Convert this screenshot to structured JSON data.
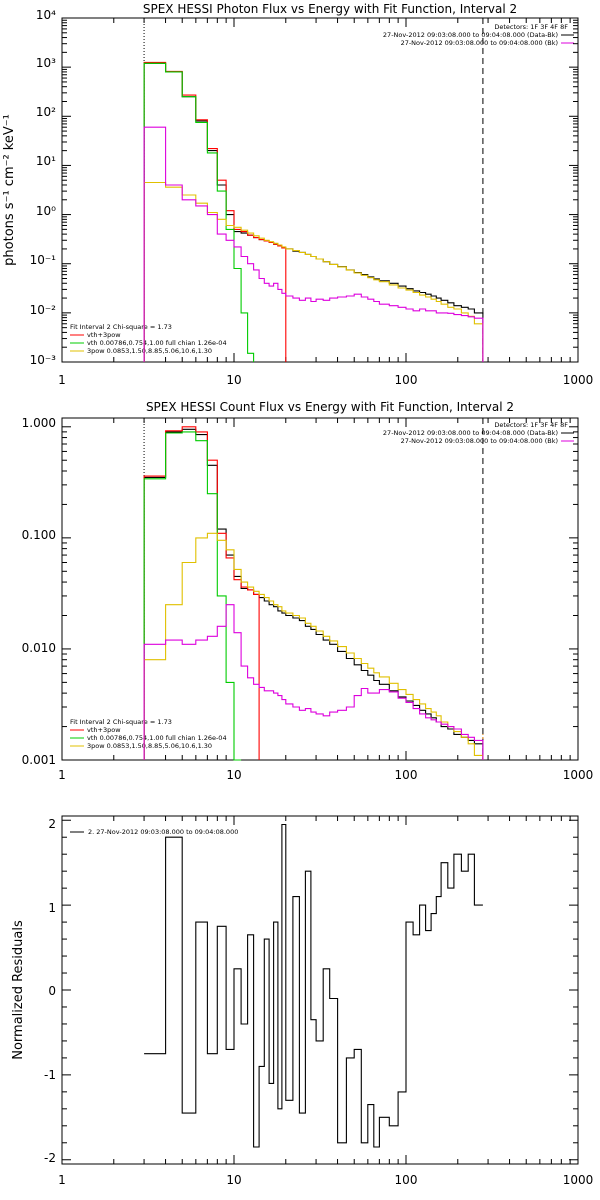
{
  "chart_data": [
    {
      "type": "line",
      "title": "SPEX HESSI Photon Flux vs Energy with Fit Function, Interval 2",
      "xlabel": "",
      "ylabel": "photons s⁻¹ cm⁻² keV⁻¹",
      "xscale": "log",
      "yscale": "log",
      "xlim": [
        1,
        1000
      ],
      "ylim": [
        0.001,
        10000
      ],
      "x_ticks": [
        "1",
        "10",
        "100",
        "1000"
      ],
      "y_ticks": [
        "10⁻³",
        "10⁻²",
        "10⁻¹",
        "10⁰",
        "10¹",
        "10²",
        "10³",
        "10⁴"
      ],
      "vlines": [
        {
          "x": 3,
          "style": "dotted"
        },
        {
          "x": 280,
          "style": "dashed"
        }
      ],
      "legend_header": [
        "Detectors: 1F 3F 4F 8F",
        "27-Nov-2012 09:03:08.000 to 09:04:08.000 (Data-Bk)",
        "27-Nov-2012 09:03:08.000 to 09:04:08.000 (Bk)"
      ],
      "fit_info": [
        "Fit Interval 2   Chi-square = 1.73",
        "vth+3pow",
        "vth 0.00786,0.754,1.00   full chian 1.26e-04",
        "3pow 0.0853,1.50,8.85,5.06,10.6,1.30"
      ],
      "series": [
        {
          "color": "#000000",
          "edges": [
            3,
            4,
            5,
            6,
            7,
            8,
            9,
            10,
            11,
            12,
            13,
            14,
            15,
            16,
            17,
            18,
            19,
            20,
            22,
            24,
            26,
            28,
            30,
            33,
            36,
            40,
            45,
            50,
            55,
            60,
            65,
            70,
            80,
            90,
            100,
            110,
            120,
            130,
            140,
            150,
            160,
            175,
            190,
            210,
            230,
            250,
            280
          ],
          "values": [
            1200,
            800,
            250,
            80,
            20,
            4,
            1.0,
            0.45,
            0.42,
            0.38,
            0.34,
            0.31,
            0.29,
            0.27,
            0.25,
            0.23,
            0.21,
            0.2,
            0.18,
            0.17,
            0.155,
            0.14,
            0.125,
            0.11,
            0.097,
            0.087,
            0.075,
            0.066,
            0.06,
            0.054,
            0.049,
            0.045,
            0.04,
            0.035,
            0.031,
            0.028,
            0.026,
            0.024,
            0.022,
            0.02,
            0.018,
            0.016,
            0.014,
            0.013,
            0.012,
            0.01
          ]
        },
        {
          "color": "#ff0000",
          "edges": [
            3,
            4,
            5,
            6,
            7,
            8,
            9,
            10,
            11,
            12,
            13,
            14,
            15,
            16,
            17,
            18,
            19,
            20
          ],
          "values": [
            1250,
            820,
            270,
            85,
            22,
            5,
            1.2,
            0.5,
            0.45,
            0.38,
            0.34,
            0.31,
            0.29,
            0.27,
            0.25,
            0.23,
            0.21
          ]
        },
        {
          "color": "#00cc00",
          "edges": [
            3,
            4,
            5,
            6,
            7,
            8,
            9,
            10,
            11,
            12,
            13
          ],
          "values": [
            1200,
            800,
            250,
            75,
            18,
            3,
            0.5,
            0.08,
            0.01,
            0.0015
          ]
        },
        {
          "color": "#e0c000",
          "edges": [
            3,
            4,
            5,
            6,
            7,
            8,
            9,
            10,
            11,
            12,
            13,
            14,
            15,
            16,
            17,
            18,
            19,
            20,
            22,
            24,
            26,
            28,
            30,
            33,
            36,
            40,
            45,
            50,
            55,
            60,
            65,
            70,
            80,
            90,
            100,
            110,
            120,
            130,
            140,
            150,
            160,
            175,
            190,
            210,
            230,
            250,
            280
          ],
          "values": [
            4.5,
            3.6,
            2.5,
            1.7,
            1.1,
            0.8,
            0.6,
            0.55,
            0.48,
            0.42,
            0.37,
            0.33,
            0.3,
            0.28,
            0.26,
            0.24,
            0.22,
            0.2,
            0.185,
            0.17,
            0.155,
            0.14,
            0.125,
            0.11,
            0.097,
            0.086,
            0.074,
            0.065,
            0.058,
            0.052,
            0.047,
            0.043,
            0.037,
            0.032,
            0.029,
            0.026,
            0.023,
            0.021,
            0.019,
            0.017,
            0.015,
            0.013,
            0.012,
            0.01,
            0.0085,
            0.006
          ]
        },
        {
          "color": "#dd00dd",
          "edges": [
            3,
            4,
            5,
            6,
            7,
            8,
            9,
            10,
            11,
            12,
            13,
            14,
            15,
            16,
            17,
            18,
            19,
            20,
            22,
            24,
            26,
            28,
            30,
            33,
            36,
            40,
            45,
            50,
            55,
            60,
            65,
            70,
            80,
            90,
            100,
            110,
            120,
            130,
            140,
            150,
            160,
            175,
            190,
            210,
            230,
            250,
            280
          ],
          "values": [
            60,
            4,
            2,
            1.5,
            1.0,
            0.4,
            0.3,
            0.22,
            0.14,
            0.1,
            0.075,
            0.05,
            0.04,
            0.035,
            0.04,
            0.03,
            0.025,
            0.022,
            0.02,
            0.018,
            0.02,
            0.017,
            0.019,
            0.018,
            0.02,
            0.021,
            0.022,
            0.024,
            0.021,
            0.019,
            0.017,
            0.015,
            0.014,
            0.013,
            0.012,
            0.011,
            0.012,
            0.011,
            0.011,
            0.01,
            0.01,
            0.0098,
            0.0092,
            0.0088,
            0.0083,
            0.0078
          ]
        }
      ]
    },
    {
      "type": "line",
      "title": "SPEX HESSI Count Flux vs Energy with Fit Function, Interval 2",
      "xlabel": "",
      "ylabel": "",
      "xscale": "log",
      "yscale": "log",
      "xlim": [
        1,
        1000
      ],
      "ylim": [
        0.001,
        1.2
      ],
      "x_ticks": [
        "1",
        "10",
        "100",
        "1000"
      ],
      "y_ticks": [
        "0.001",
        "0.010",
        "0.100",
        "1.000"
      ],
      "vlines": [
        {
          "x": 3,
          "style": "dotted"
        },
        {
          "x": 280,
          "style": "dashed"
        }
      ],
      "legend_header": [
        "Detectors: 1F 3F 4F 8F",
        "27-Nov-2012 09:03:08.000 to 09:04:08.000 (Data-Bk)",
        "27-Nov-2012 09:03:08.000 to 09:04:08.000 (Bk)"
      ],
      "fit_info": [
        "Fit Interval 2   Chi-square = 1.73",
        "vth+3pow",
        "vth 0.00786,0.754,1.00   full chian 1.26e-04",
        "3pow 0.0853,1.50,8.85,5.06,10.6,1.30"
      ],
      "series": [
        {
          "color": "#000000",
          "edges": [
            3,
            4,
            5,
            6,
            7,
            8,
            9,
            10,
            11,
            12,
            13,
            14,
            15,
            16,
            17,
            18,
            19,
            20,
            22,
            24,
            26,
            28,
            30,
            33,
            36,
            40,
            45,
            50,
            55,
            60,
            65,
            70,
            80,
            90,
            100,
            110,
            120,
            130,
            140,
            150,
            160,
            175,
            190,
            210,
            230,
            250,
            280
          ],
          "values": [
            0.35,
            0.9,
            0.95,
            0.85,
            0.45,
            0.12,
            0.07,
            0.045,
            0.035,
            0.034,
            0.031,
            0.029,
            0.027,
            0.025,
            0.024,
            0.022,
            0.021,
            0.02,
            0.019,
            0.018,
            0.016,
            0.015,
            0.0135,
            0.012,
            0.011,
            0.0095,
            0.0082,
            0.0072,
            0.0064,
            0.0058,
            0.0052,
            0.0048,
            0.0042,
            0.0037,
            0.0034,
            0.0031,
            0.0028,
            0.0026,
            0.0024,
            0.0022,
            0.002,
            0.0019,
            0.0017,
            0.0016,
            0.0015,
            0.0014
          ]
        },
        {
          "color": "#ff0000",
          "edges": [
            3,
            4,
            5,
            6,
            7,
            8,
            9,
            10,
            11,
            12,
            13,
            14
          ],
          "values": [
            0.36,
            0.92,
            1.0,
            0.9,
            0.5,
            0.11,
            0.066,
            0.042,
            0.036,
            0.034,
            0.031
          ]
        },
        {
          "color": "#00cc00",
          "edges": [
            3,
            4,
            5,
            6,
            7,
            8,
            9,
            10,
            11
          ],
          "values": [
            0.34,
            0.88,
            0.9,
            0.75,
            0.25,
            0.03,
            0.005,
            0.0008
          ]
        },
        {
          "color": "#e0c000",
          "edges": [
            3,
            4,
            5,
            6,
            7,
            8,
            9,
            10,
            11,
            12,
            13,
            14,
            15,
            16,
            17,
            18,
            19,
            20,
            22,
            24,
            26,
            28,
            30,
            33,
            36,
            40,
            45,
            50,
            55,
            60,
            65,
            70,
            80,
            90,
            100,
            110,
            120,
            130,
            140,
            150,
            160,
            175,
            190,
            210,
            230,
            250,
            280
          ],
          "values": [
            0.008,
            0.025,
            0.06,
            0.1,
            0.11,
            0.095,
            0.078,
            0.052,
            0.04,
            0.036,
            0.033,
            0.031,
            0.029,
            0.027,
            0.025,
            0.024,
            0.022,
            0.021,
            0.02,
            0.019,
            0.017,
            0.016,
            0.0145,
            0.013,
            0.0118,
            0.0105,
            0.0092,
            0.0082,
            0.0074,
            0.0067,
            0.0061,
            0.0056,
            0.0049,
            0.0043,
            0.0039,
            0.0035,
            0.0032,
            0.0029,
            0.0027,
            0.0025,
            0.0022,
            0.002,
            0.0018,
            0.0016,
            0.0014,
            0.0011
          ]
        },
        {
          "color": "#dd00dd",
          "edges": [
            3,
            4,
            5,
            6,
            7,
            8,
            9,
            10,
            11,
            12,
            13,
            14,
            15,
            16,
            17,
            18,
            19,
            20,
            22,
            24,
            26,
            28,
            30,
            33,
            36,
            40,
            45,
            50,
            55,
            60,
            65,
            70,
            80,
            90,
            100,
            110,
            120,
            130,
            140,
            150,
            160,
            175,
            190,
            210,
            230,
            250,
            280
          ],
          "values": [
            0.011,
            0.012,
            0.011,
            0.012,
            0.013,
            0.016,
            0.025,
            0.014,
            0.007,
            0.0055,
            0.0048,
            0.0045,
            0.0042,
            0.0042,
            0.004,
            0.0038,
            0.0035,
            0.0032,
            0.003,
            0.0028,
            0.0029,
            0.0027,
            0.0026,
            0.0025,
            0.0027,
            0.0028,
            0.003,
            0.0038,
            0.0044,
            0.004,
            0.004,
            0.0043,
            0.0041,
            0.0036,
            0.0033,
            0.0029,
            0.0026,
            0.0024,
            0.0023,
            0.0022,
            0.0021,
            0.002,
            0.0019,
            0.0017,
            0.0016,
            0.0015
          ]
        }
      ]
    },
    {
      "type": "line",
      "title": "",
      "xlabel": "",
      "ylabel": "Normalized Residuals",
      "xscale": "log",
      "yscale": "linear",
      "xlim": [
        1,
        1000
      ],
      "ylim": [
        -2.05,
        2.05
      ],
      "x_ticks": [
        "1",
        "10",
        "100",
        "1000"
      ],
      "y_ticks": [
        "-2",
        "-1",
        "0",
        "1",
        "2"
      ],
      "legend": [
        "2. 27-Nov-2012 09:03:08.000 to 09:04:08.000"
      ],
      "series": [
        {
          "color": "#000000",
          "edges": [
            3,
            4,
            5,
            6,
            7,
            8,
            9,
            10,
            11,
            12,
            13,
            14,
            15,
            16,
            17,
            18,
            19,
            20,
            22,
            24,
            26,
            28,
            30,
            33,
            36,
            40,
            45,
            50,
            55,
            60,
            65,
            70,
            80,
            90,
            100,
            110,
            120,
            130,
            140,
            150,
            160,
            175,
            190,
            210,
            230,
            250,
            280
          ],
          "values": [
            -0.75,
            1.8,
            -1.45,
            0.8,
            -0.75,
            0.75,
            -0.7,
            0.25,
            -0.4,
            0.65,
            -1.85,
            -0.9,
            0.6,
            -1.1,
            0.8,
            -1.4,
            1.95,
            -1.3,
            1.1,
            -1.45,
            1.4,
            -0.35,
            -0.6,
            0.25,
            -0.1,
            -1.8,
            -0.8,
            -0.7,
            -1.8,
            -1.35,
            -1.85,
            -1.5,
            -1.6,
            -1.2,
            0.8,
            0.65,
            1.0,
            0.7,
            0.9,
            1.1,
            1.5,
            1.2,
            1.6,
            1.4,
            1.6,
            1.0
          ]
        }
      ]
    }
  ],
  "color_key": {
    "data_minus_bk": "#000000",
    "total_fit": "#ff0000",
    "thermal": "#00cc00",
    "power_law": "#e0c000",
    "background": "#dd00dd"
  }
}
